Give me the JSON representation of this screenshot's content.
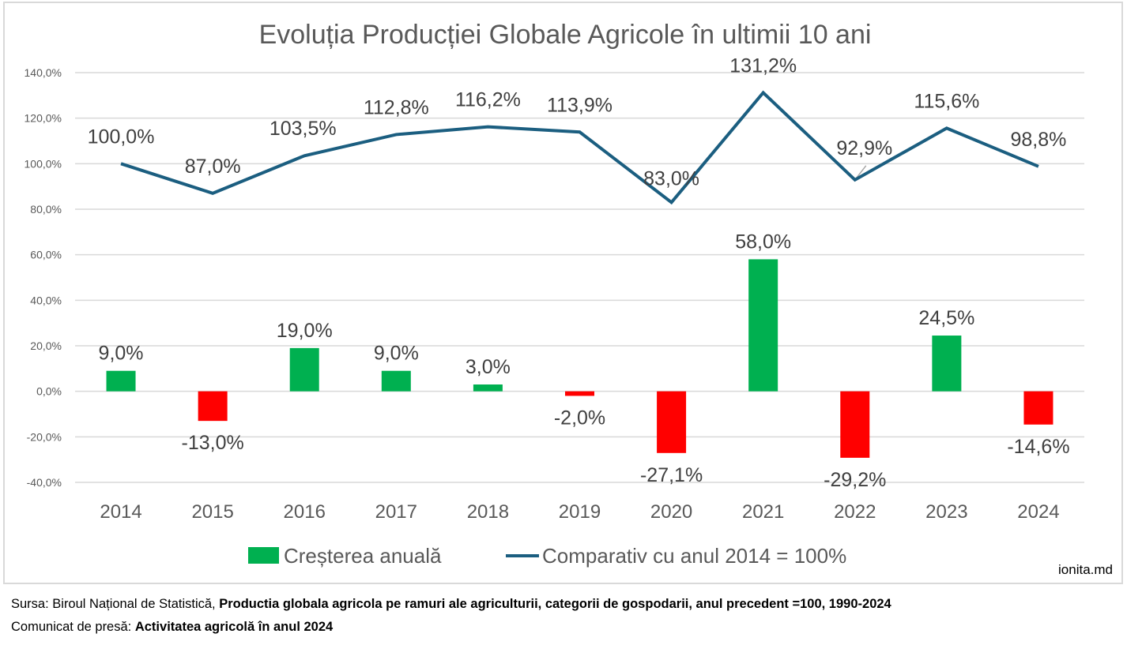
{
  "chart_data": {
    "type": "bar+line",
    "title": "Evoluția Producției Globale Agricole în ultimii 10 ani",
    "categories": [
      "2014",
      "2015",
      "2016",
      "2017",
      "2018",
      "2019",
      "2020",
      "2021",
      "2022",
      "2023",
      "2024"
    ],
    "series": [
      {
        "name": "Creșterea anuală",
        "type": "bar",
        "values": [
          9.0,
          -13.0,
          19.0,
          9.0,
          3.0,
          -2.0,
          -27.1,
          58.0,
          -29.2,
          24.5,
          -14.6
        ],
        "labels": [
          "9,0%",
          "-13,0%",
          "19,0%",
          "9,0%",
          "3,0%",
          "-2,0%",
          "-27,1%",
          "58,0%",
          "-29,2%",
          "24,5%",
          "-14,6%"
        ],
        "positive_color": "#00b050",
        "negative_color": "#ff0000"
      },
      {
        "name": "Comparativ cu anul 2014 = 100%",
        "type": "line",
        "values": [
          100.0,
          87.0,
          103.5,
          112.8,
          116.2,
          113.9,
          83.0,
          131.2,
          92.9,
          115.6,
          98.8
        ],
        "labels": [
          "100,0%",
          "87,0%",
          "103,5%",
          "112,8%",
          "116,2%",
          "113,9%",
          "83,0%",
          "131,2%",
          "92,9%",
          "115,6%",
          "98,8%"
        ],
        "color": "#1b5e80"
      }
    ],
    "ylim": [
      -40,
      140
    ],
    "yticks": [
      -40,
      -20,
      0,
      20,
      40,
      60,
      80,
      100,
      120,
      140
    ],
    "ytick_labels": [
      "-40,0%",
      "-20,0%",
      "0,0%",
      "20,0%",
      "40,0%",
      "60,0%",
      "80,0%",
      "100,0%",
      "120,0%",
      "140,0%"
    ],
    "xlabel": "",
    "ylabel": "",
    "grid": true,
    "legend": {
      "placement": "bottom",
      "items": [
        "Creșterea anuală",
        "Comparativ cu anul 2014 = 100%"
      ]
    }
  },
  "watermark": "ionita.md",
  "footer": {
    "line1_prefix": "Sursa: Biroul Național de Statistică, ",
    "line1_bold": "Productia globala agricola pe ramuri ale agriculturii, categorii de gospodarii, anul precedent =100, 1990-2024",
    "line2_prefix": "Comunicat de presă: ",
    "line2_bold": "Activitatea agricolă în anul 2024"
  }
}
